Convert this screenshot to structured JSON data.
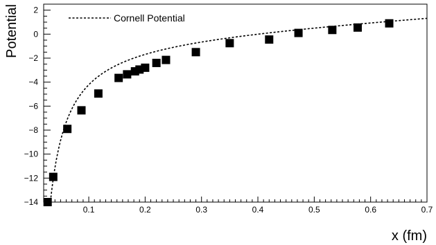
{
  "chart_data": {
    "type": "scatter",
    "title": "",
    "xlabel": "x (fm)",
    "ylabel": "Potential",
    "xlim": [
      0.02,
      0.7
    ],
    "ylim": [
      -14,
      2.5
    ],
    "x_major_ticks": [
      0.1,
      0.2,
      0.3,
      0.4,
      0.5,
      0.6,
      0.7
    ],
    "x_tick_labels": [
      "0.1",
      "0.2",
      "0.3",
      "0.4",
      "0.5",
      "0.6",
      "0.7"
    ],
    "y_major_ticks": [
      -14,
      -12,
      -10,
      -8,
      -6,
      -4,
      -2,
      0,
      2
    ],
    "y_tick_labels": [
      "−14",
      "−12",
      "−10",
      "−8",
      "−6",
      "−4",
      "−2",
      "0",
      "2"
    ],
    "grid": false,
    "legend_position": "top-left",
    "series": [
      {
        "name": "Cornell Potential",
        "style": "dashed-line",
        "color": "#000000",
        "model": {
          "a": -0.45,
          "b": 2.8
        }
      },
      {
        "style": "square-markers",
        "color": "#000000",
        "points": [
          [
            0.027,
            -14.0
          ],
          [
            0.037,
            -11.9
          ],
          [
            0.062,
            -7.9
          ],
          [
            0.087,
            -6.35
          ],
          [
            0.117,
            -4.95
          ],
          [
            0.153,
            -3.65
          ],
          [
            0.168,
            -3.35
          ],
          [
            0.182,
            -3.1
          ],
          [
            0.19,
            -2.95
          ],
          [
            0.2,
            -2.8
          ],
          [
            0.22,
            -2.4
          ],
          [
            0.237,
            -2.15
          ],
          [
            0.29,
            -1.5
          ],
          [
            0.35,
            -0.75
          ],
          [
            0.42,
            -0.45
          ],
          [
            0.472,
            0.1
          ],
          [
            0.532,
            0.35
          ],
          [
            0.577,
            0.55
          ],
          [
            0.633,
            0.9
          ]
        ]
      }
    ]
  }
}
